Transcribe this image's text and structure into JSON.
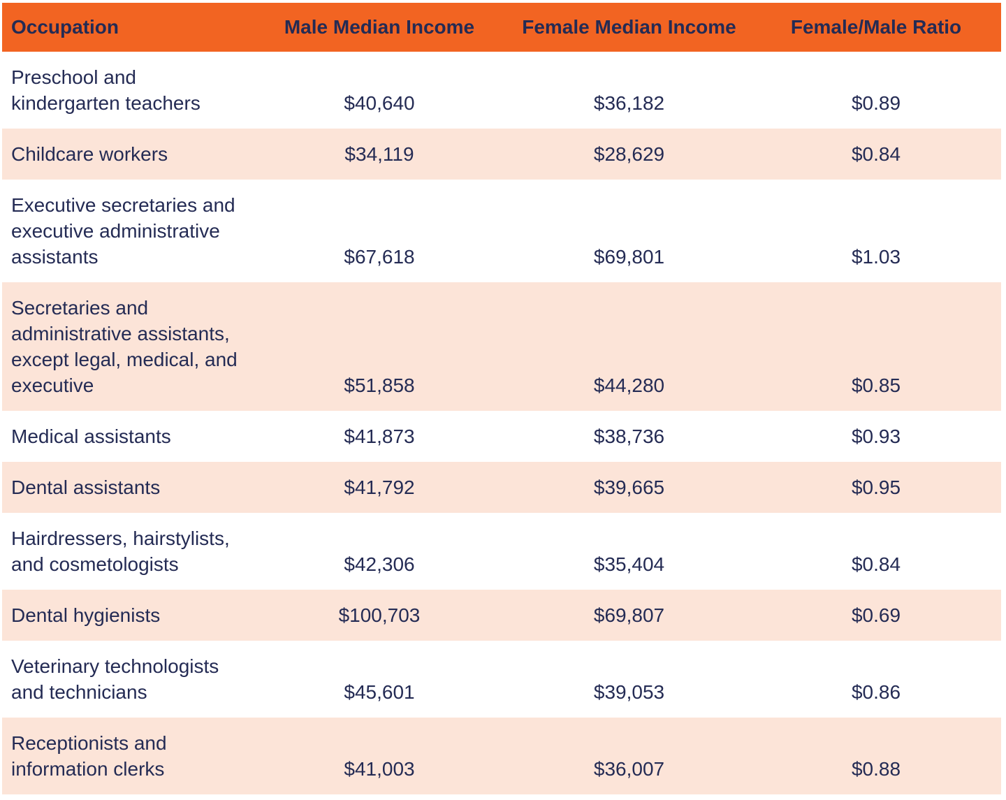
{
  "colors": {
    "header_background": "#F26422",
    "row_stripe": "#FCE4D8",
    "row_plain": "#FFFFFF",
    "text": "#242B54"
  },
  "table": {
    "columns": [
      {
        "label": "Occupation"
      },
      {
        "label": "Male Median Income"
      },
      {
        "label": "Female Median Income"
      },
      {
        "label": "Female/Male Ratio"
      }
    ],
    "rows": [
      {
        "occupation": "Preschool and\nkindergarten teachers",
        "male": "$40,640",
        "female": "$36,182",
        "ratio": "$0.89"
      },
      {
        "occupation": "Childcare workers",
        "male": "$34,119",
        "female": "$28,629",
        "ratio": "$0.84"
      },
      {
        "occupation": "Executive secretaries and\nexecutive administrative\nassistants",
        "male": "$67,618",
        "female": "$69,801",
        "ratio": "$1.03"
      },
      {
        "occupation": "Secretaries and\nadministrative assistants,\nexcept legal, medical, and\nexecutive",
        "male": "$51,858",
        "female": "$44,280",
        "ratio": "$0.85"
      },
      {
        "occupation": "Medical assistants",
        "male": "$41,873",
        "female": "$38,736",
        "ratio": "$0.93"
      },
      {
        "occupation": "Dental assistants",
        "male": "$41,792",
        "female": "$39,665",
        "ratio": "$0.95"
      },
      {
        "occupation": "Hairdressers, hairstylists,\nand cosmetologists",
        "male": "$42,306",
        "female": "$35,404",
        "ratio": "$0.84"
      },
      {
        "occupation": "Dental hygienists",
        "male": "$100,703",
        "female": "$69,807",
        "ratio": "$0.69"
      },
      {
        "occupation": "Veterinary technologists\nand technicians",
        "male": "$45,601",
        "female": "$39,053",
        "ratio": "$0.86"
      },
      {
        "occupation": "Receptionists and\ninformation clerks",
        "male": "$41,003",
        "female": "$36,007",
        "ratio": "$0.88"
      }
    ]
  },
  "chart_data": {
    "type": "table",
    "title": "",
    "columns": [
      "Occupation",
      "Male Median Income",
      "Female Median Income",
      "Female/Male Ratio"
    ],
    "rows": [
      [
        "Preschool and kindergarten teachers",
        "$40,640",
        "$36,182",
        "$0.89"
      ],
      [
        "Childcare workers",
        "$34,119",
        "$28,629",
        "$0.84"
      ],
      [
        "Executive secretaries and executive administrative assistants",
        "$67,618",
        "$69,801",
        "$1.03"
      ],
      [
        "Secretaries and administrative assistants, except legal, medical, and executive",
        "$51,858",
        "$44,280",
        "$0.85"
      ],
      [
        "Medical assistants",
        "$41,873",
        "$38,736",
        "$0.93"
      ],
      [
        "Dental assistants",
        "$41,792",
        "$39,665",
        "$0.95"
      ],
      [
        "Hairdressers, hairstylists, and cosmetologists",
        "$42,306",
        "$35,404",
        "$0.84"
      ],
      [
        "Dental hygienists",
        "$100,703",
        "$69,807",
        "$0.69"
      ],
      [
        "Veterinary technologists and technicians",
        "$45,601",
        "$39,053",
        "$0.86"
      ],
      [
        "Receptionists and information clerks",
        "$41,003",
        "$36,007",
        "$0.88"
      ]
    ],
    "numeric_series": [
      {
        "name": "Male Median Income",
        "values": [
          40640,
          34119,
          67618,
          51858,
          41873,
          41792,
          42306,
          100703,
          45601,
          41003
        ]
      },
      {
        "name": "Female Median Income",
        "values": [
          36182,
          28629,
          69801,
          44280,
          38736,
          39665,
          35404,
          69807,
          39053,
          36007
        ]
      },
      {
        "name": "Female/Male Ratio",
        "values": [
          0.89,
          0.84,
          1.03,
          0.85,
          0.93,
          0.95,
          0.84,
          0.69,
          0.86,
          0.88
        ]
      }
    ]
  }
}
